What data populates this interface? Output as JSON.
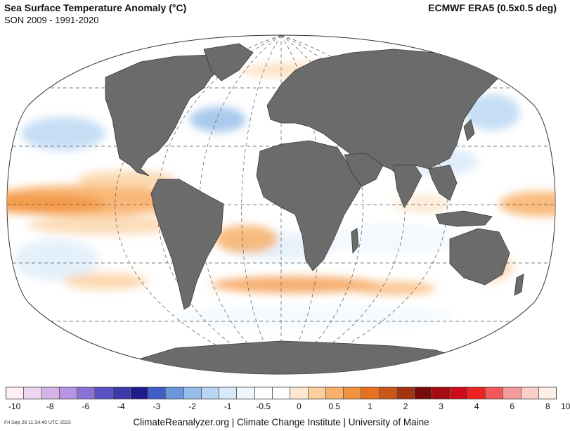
{
  "header": {
    "title": "Sea Surface Temperature Anomaly (°C)",
    "subtitle": "SON 2009 - 1991-2020",
    "source": "ECMWF ERA5 (0.5x0.5 deg)"
  },
  "legend": {
    "swatches": [
      "#fdeef6",
      "#eed6f0",
      "#d5b3e8",
      "#b894e4",
      "#8a72d6",
      "#5a52c4",
      "#3b3aa8",
      "#1f1c8e",
      "#3e5ec8",
      "#6a96dc",
      "#94bde9",
      "#b8d6f3",
      "#d8e9f9",
      "#eef6fd",
      "#ffffff",
      "#ffffff",
      "#fde7cf",
      "#fbcf9e",
      "#f8b06a",
      "#f39340",
      "#e6721e",
      "#c9571a",
      "#a33412",
      "#7a0b0b",
      "#a30a12",
      "#d00a1a",
      "#ef2222",
      "#f25a5a",
      "#f59a9a",
      "#f9cfc8",
      "#fdeee6"
    ],
    "tick_labels": [
      "-10",
      "-8",
      "-6",
      "-4",
      "-3",
      "-2",
      "-1",
      "-0.5",
      "0",
      "0.5",
      "1",
      "2",
      "3",
      "4",
      "6",
      "8",
      "10"
    ],
    "tick_boundaries": [
      0,
      2,
      4,
      6,
      8,
      10,
      12,
      14,
      16,
      18,
      20,
      22,
      24,
      26,
      28,
      30,
      31
    ]
  },
  "map": {
    "projection": "Robinson-style world",
    "ocean_color": "#ffffff",
    "land_color": "#6b6b6b"
  },
  "footer": {
    "timestamp": "Fri Sep 29 11:34:40 UTC 2023",
    "credits": "ClimateReanalyzer.org | Climate Change Institute | University of Maine"
  }
}
